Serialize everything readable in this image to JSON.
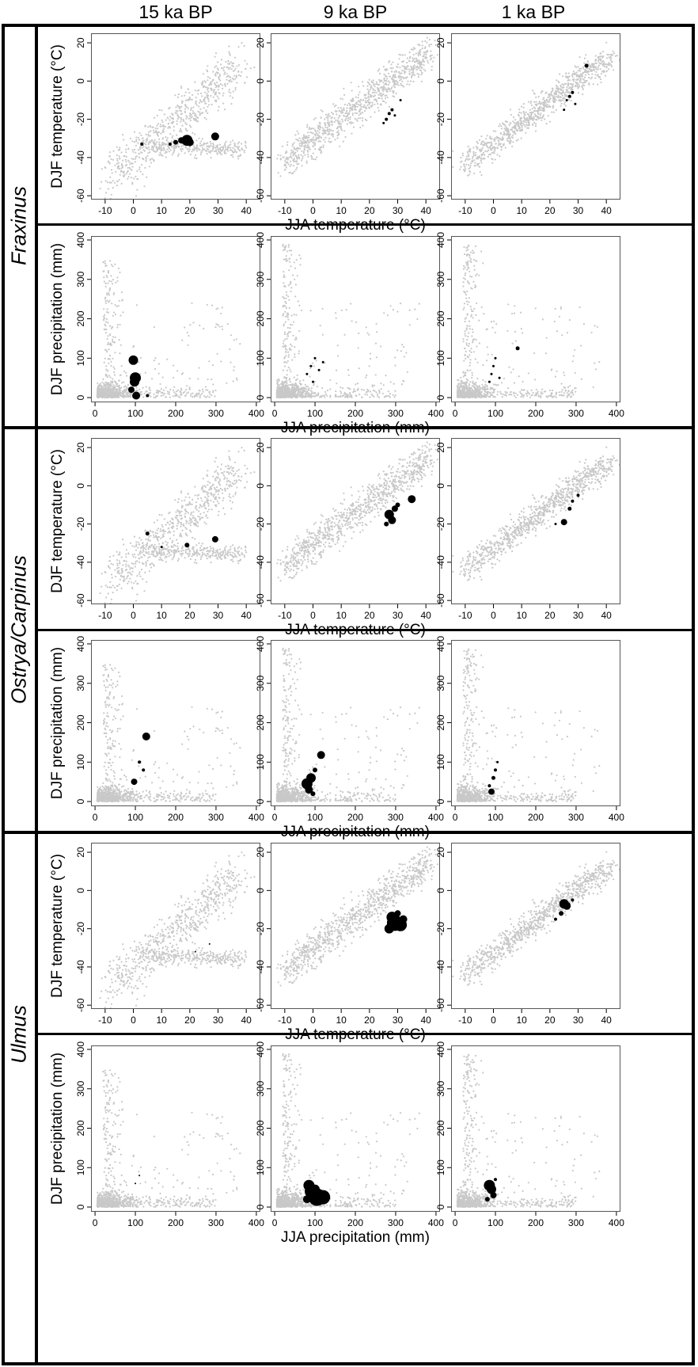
{
  "columns": [
    "15 ka BP",
    "9 ka BP",
    "1 ka BP"
  ],
  "species": [
    "Fraxinus",
    "Ostrya/Carpinus",
    "Ulmus"
  ],
  "axis_labels": {
    "temp_x": "JJA temperature (°C)",
    "temp_y": "DJF temperature (°C)",
    "prec_x": "JJA precipitation (mm)",
    "prec_y": "DJF precipitation (mm)"
  },
  "colors": {
    "background_points": "#c8c8c8",
    "taxon_points": "#000000",
    "frame": "#000000"
  },
  "chart_data": [
    {
      "type": "scatter",
      "panel_grid": "3 species rows x 2 variable rows x 3 time columns",
      "temperature_panels": {
        "x": "JJA temperature",
        "y": "DJF temperature",
        "xlim": [
          -15,
          45
        ],
        "ylim": [
          -62,
          25
        ],
        "xticks": [
          -10,
          0,
          10,
          20,
          30,
          40
        ],
        "yticks": [
          20,
          0,
          -20,
          -40,
          -60
        ]
      },
      "precipitation_panels": {
        "x": "JJA precipitation",
        "y": "DJF precipitation",
        "xlim": [
          -10,
          410
        ],
        "ylim": [
          -12,
          410
        ],
        "xticks": [
          0,
          100,
          200,
          300,
          400
        ],
        "yticks": [
          0,
          100,
          200,
          300,
          400
        ]
      },
      "taxon_points": {
        "Fraxinus": {
          "15 ka BP": {
            "temp": [
              [
                3,
                -33,
                2
              ],
              [
                13,
                -33,
                2
              ],
              [
                15,
                -32,
                3
              ],
              [
                17,
                -31,
                4
              ],
              [
                19,
                -31,
                7
              ],
              [
                20,
                -32,
                5
              ],
              [
                29,
                -29,
                5
              ]
            ],
            "prec": [
              [
                95,
                95,
                6
              ],
              [
                100,
                50,
                7
              ],
              [
                98,
                40,
                6
              ],
              [
                90,
                20,
                4
              ],
              [
                102,
                5,
                5
              ],
              [
                130,
                5,
                2
              ]
            ]
          },
          "9 ka BP": {
            "temp": [
              [
                26,
                -20,
                2
              ],
              [
                27,
                -17,
                2
              ],
              [
                28,
                -15,
                2
              ],
              [
                25,
                -22,
                1.5
              ],
              [
                29,
                -18,
                1.5
              ],
              [
                31,
                -10,
                1.5
              ]
            ],
            "prec": [
              [
                80,
                60,
                1.5
              ],
              [
                90,
                80,
                1.5
              ],
              [
                100,
                100,
                1.5
              ],
              [
                95,
                40,
                1.5
              ],
              [
                110,
                70,
                1.5
              ],
              [
                120,
                90,
                1.5
              ]
            ]
          },
          "1 ka BP": {
            "temp": [
              [
                27,
                -8,
                2
              ],
              [
                28,
                -6,
                2
              ],
              [
                33,
                8,
                2.5
              ],
              [
                29,
                -12,
                1.5
              ],
              [
                25,
                -15,
                1.5
              ],
              [
                26,
                -10,
                1.5
              ]
            ],
            "prec": [
              [
                90,
                60,
                1.5
              ],
              [
                95,
                80,
                1.5
              ],
              [
                100,
                100,
                1.5
              ],
              [
                85,
                40,
                1.5
              ],
              [
                155,
                125,
                2.5
              ],
              [
                110,
                50,
                1.5
              ]
            ]
          }
        },
        "Ostrya/Carpinus": {
          "15 ka BP": {
            "temp": [
              [
                5,
                -25,
                2.5
              ],
              [
                19,
                -31,
                3
              ],
              [
                29,
                -28,
                4
              ],
              [
                10,
                -32,
                1.5
              ]
            ],
            "prec": [
              [
                127,
                165,
                5
              ],
              [
                97,
                50,
                4
              ],
              [
                110,
                100,
                2
              ],
              [
                120,
                80,
                2
              ]
            ]
          },
          "9 ka BP": {
            "temp": [
              [
                27,
                -15,
                6
              ],
              [
                28,
                -18,
                5
              ],
              [
                29,
                -12,
                4
              ],
              [
                35,
                -7,
                5
              ],
              [
                26,
                -20,
                3
              ],
              [
                30,
                -10,
                3
              ]
            ],
            "prec": [
              [
                80,
                45,
                7
              ],
              [
                90,
                60,
                6
              ],
              [
                85,
                30,
                5
              ],
              [
                115,
                118,
                5
              ],
              [
                100,
                80,
                3
              ],
              [
                95,
                20,
                3
              ]
            ]
          },
          "1 ka BP": {
            "temp": [
              [
                25,
                -19,
                4
              ],
              [
                27,
                -12,
                2.5
              ],
              [
                28,
                -8,
                2
              ],
              [
                30,
                -5,
                2
              ],
              [
                22,
                -20,
                1.5
              ]
            ],
            "prec": [
              [
                90,
                25,
                4
              ],
              [
                95,
                60,
                2.5
              ],
              [
                100,
                80,
                2
              ],
              [
                85,
                40,
                2
              ],
              [
                105,
                100,
                1.5
              ]
            ]
          }
        },
        "Ulmus": {
          "15 ka BP": {
            "temp": [
              [
                27,
                -28,
                1
              ],
              [
                22,
                -32,
                1
              ]
            ],
            "prec": [
              [
                100,
                60,
                1
              ],
              [
                110,
                80,
                1
              ]
            ]
          },
          "9 ka BP": {
            "temp": [
              [
                29,
                -17,
                10
              ],
              [
                31,
                -18,
                8
              ],
              [
                28,
                -14,
                7
              ],
              [
                27,
                -20,
                6
              ],
              [
                32,
                -15,
                5
              ],
              [
                30,
                -12,
                4
              ]
            ],
            "prec": [
              [
                105,
                25,
                11
              ],
              [
                120,
                25,
                9
              ],
              [
                90,
                40,
                8
              ],
              [
                85,
                55,
                7
              ],
              [
                100,
                45,
                6
              ],
              [
                80,
                20,
                5
              ]
            ]
          },
          "1 ka BP": {
            "temp": [
              [
                25,
                -7,
                6
              ],
              [
                26,
                -8,
                5
              ],
              [
                24,
                -12,
                3
              ],
              [
                22,
                -15,
                2
              ],
              [
                28,
                -5,
                2
              ]
            ],
            "prec": [
              [
                85,
                55,
                7
              ],
              [
                90,
                45,
                6
              ],
              [
                95,
                30,
                4
              ],
              [
                80,
                20,
                3
              ],
              [
                100,
                70,
                2
              ]
            ]
          }
        }
      }
    }
  ]
}
